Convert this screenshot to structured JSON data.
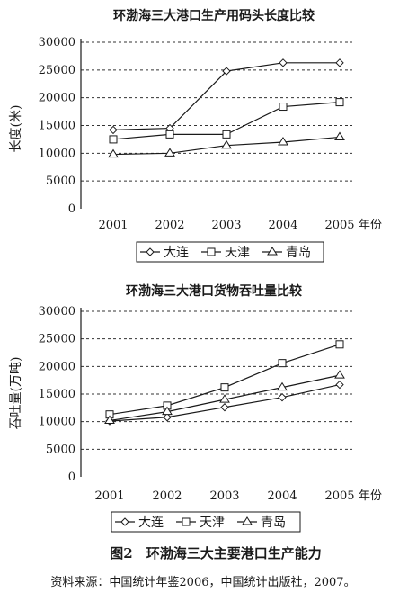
{
  "charts": [
    {
      "title": "环渤海三大港口生产用码头长度比较",
      "ylabel": "长度(米)",
      "x_suffix": "年份",
      "categories": [
        "2001",
        "2002",
        "2003",
        "2004",
        "2005"
      ],
      "y_ticks": [
        "0",
        "5000",
        "10000",
        "15000",
        "20000",
        "25000",
        "30000"
      ],
      "legend": [
        "大连",
        "天津",
        "青岛"
      ]
    },
    {
      "title": "环渤海三大港口货物吞吐量比较",
      "ylabel": "吞吐量(万吨)",
      "x_suffix": "年份",
      "categories": [
        "2001",
        "2002",
        "2003",
        "2004",
        "2005"
      ],
      "y_ticks": [
        "0",
        "5000",
        "10000",
        "15000",
        "20000",
        "25000",
        "30000"
      ],
      "legend": [
        "大连",
        "天津",
        "青岛"
      ]
    }
  ],
  "caption": "图2　环渤海三大主要港口生产能力",
  "source": "资料来源：中国统计年鉴2006，中国统计出版社，2007。",
  "chart_data": [
    {
      "type": "line",
      "title": "环渤海三大港口生产用码头长度比较",
      "xlabel": "年份",
      "ylabel": "长度(米)",
      "categories": [
        "2001",
        "2002",
        "2003",
        "2004",
        "2005"
      ],
      "ylim": [
        0,
        30000
      ],
      "grid": true,
      "legend_position": "bottom",
      "series": [
        {
          "name": "大连",
          "marker": "diamond",
          "values": [
            14200,
            14500,
            24800,
            26300,
            26300
          ]
        },
        {
          "name": "天津",
          "marker": "square",
          "values": [
            12500,
            13400,
            13400,
            18400,
            19200
          ]
        },
        {
          "name": "青岛",
          "marker": "triangle",
          "values": [
            9800,
            10000,
            11400,
            12000,
            12900
          ]
        }
      ]
    },
    {
      "type": "line",
      "title": "环渤海三大港口货物吞吐量比较",
      "xlabel": "年份",
      "ylabel": "吞吐量(万吨)",
      "categories": [
        "2001",
        "2002",
        "2003",
        "2004",
        "2005"
      ],
      "ylim": [
        0,
        30000
      ],
      "grid": true,
      "legend_position": "bottom",
      "series": [
        {
          "name": "大连",
          "marker": "diamond",
          "values": [
            10100,
            10800,
            12600,
            14400,
            16700
          ]
        },
        {
          "name": "天津",
          "marker": "square",
          "values": [
            11300,
            12900,
            16200,
            20600,
            24000
          ]
        },
        {
          "name": "青岛",
          "marker": "triangle",
          "values": [
            10200,
            11800,
            14000,
            16200,
            18400
          ]
        }
      ]
    }
  ]
}
